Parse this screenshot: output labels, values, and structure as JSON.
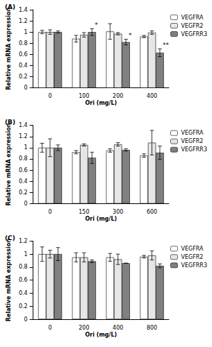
{
  "chart_data": [
    {
      "type": "bar",
      "title": "(A)",
      "x_label": "Ori (mg/L)",
      "y_label": "Relative mRNA expression",
      "categories": [
        0,
        100,
        200,
        400
      ],
      "series": [
        {
          "name": "VEGFRA",
          "color": "#ffffff",
          "values": [
            1.0,
            0.88,
            1.01,
            0.92
          ],
          "errors": [
            0.03,
            0.06,
            0.14,
            0.02
          ]
        },
        {
          "name": "VEGFR2",
          "color": "#e6e6e6",
          "values": [
            1.0,
            0.95,
            0.97,
            0.99
          ],
          "errors": [
            0.04,
            0.04,
            0.02,
            0.03
          ]
        },
        {
          "name": "VEGFRR3",
          "color": "#808080",
          "values": [
            1.0,
            1.0,
            0.82,
            0.63
          ],
          "errors": [
            0.02,
            0.06,
            0.05,
            0.07
          ]
        }
      ],
      "annotations": [
        {
          "category": 100,
          "series": "VEGFRR3",
          "text": "*"
        },
        {
          "category": 200,
          "series": "VEGFRR3",
          "text": "*"
        },
        {
          "category": 400,
          "series": "VEGFRR3",
          "text": "**"
        }
      ],
      "ylim": [
        0,
        1.4
      ],
      "yticks": [
        0,
        0.2,
        0.4,
        0.6,
        0.8,
        1,
        1.2,
        1.4
      ],
      "grid": false,
      "legend": "top-right"
    },
    {
      "type": "bar",
      "title": "(B)",
      "x_label": "Ori (mg/L)",
      "y_label": "Relative mRNA expression",
      "categories": [
        0,
        150,
        300,
        600
      ],
      "series": [
        {
          "name": "VEGFRA",
          "color": "#ffffff",
          "values": [
            1.0,
            0.92,
            0.95,
            0.86
          ],
          "errors": [
            0.08,
            0.03,
            0.03,
            0.03
          ]
        },
        {
          "name": "VEGFR2",
          "color": "#e6e6e6",
          "values": [
            1.0,
            1.05,
            1.06,
            1.09
          ],
          "errors": [
            0.16,
            0.02,
            0.03,
            0.22
          ]
        },
        {
          "name": "VEGFRR3",
          "color": "#808080",
          "values": [
            1.0,
            0.82,
            0.96,
            0.91
          ],
          "errors": [
            0.05,
            0.1,
            0.02,
            0.12
          ]
        }
      ],
      "annotations": [],
      "ylim": [
        0,
        1.4
      ],
      "yticks": [
        0,
        0.2,
        0.4,
        0.6,
        0.8,
        1,
        1.2,
        1.4
      ],
      "grid": false,
      "legend": "top-right"
    },
    {
      "type": "bar",
      "title": "(C)",
      "x_label": "Ori (mg/L)",
      "y_label": "Relative mRNA expression",
      "categories": [
        0,
        200,
        400,
        800
      ],
      "series": [
        {
          "name": "VEGFRA",
          "color": "#ffffff",
          "values": [
            1.0,
            0.95,
            0.95,
            0.96
          ],
          "errors": [
            0.11,
            0.07,
            0.06,
            0.02
          ]
        },
        {
          "name": "VEGFR2",
          "color": "#e6e6e6",
          "values": [
            1.0,
            0.95,
            0.92,
            0.98
          ],
          "errors": [
            0.06,
            0.07,
            0.08,
            0.07
          ]
        },
        {
          "name": "VEGFRR3",
          "color": "#808080",
          "values": [
            1.0,
            0.89,
            0.86,
            0.82
          ],
          "errors": [
            0.1,
            0.02,
            0.0,
            0.03
          ]
        }
      ],
      "annotations": [],
      "ylim": [
        0,
        1.2
      ],
      "yticks": [
        0,
        0.2,
        0.4,
        0.6,
        0.8,
        1,
        1.2
      ],
      "grid": false,
      "legend": "top-right"
    }
  ]
}
